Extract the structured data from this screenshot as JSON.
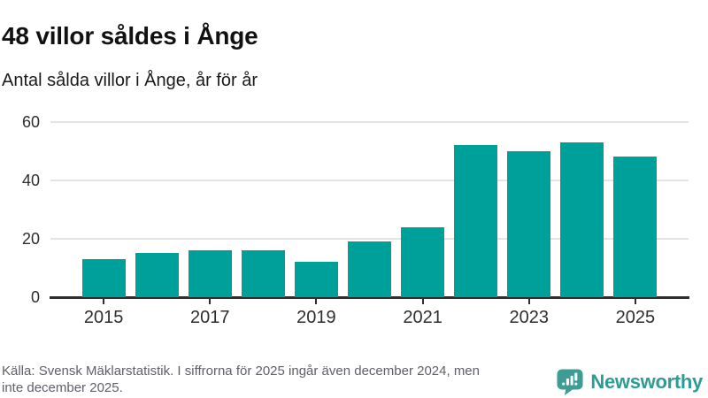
{
  "chart_data": {
    "type": "bar",
    "title": "48 villor såldes i Ånge",
    "subtitle": "Antal sålda villor i Ånge, år för år",
    "categories": [
      "2015",
      "2016",
      "2017",
      "2018",
      "2019",
      "2020",
      "2021",
      "2022",
      "2023",
      "2024",
      "2025"
    ],
    "values": [
      13,
      15,
      16,
      16,
      12,
      19,
      24,
      52,
      50,
      53,
      48
    ],
    "xlabel": "",
    "ylabel": "",
    "ylim": [
      0,
      60
    ],
    "yticks": [
      0,
      20,
      40,
      60
    ],
    "x_tick_labels": [
      "2015",
      "2017",
      "2019",
      "2021",
      "2023",
      "2025"
    ],
    "bar_color": "#00a09a",
    "grid": true,
    "legend": false
  },
  "footer": {
    "source_line1": "Källa: Svensk Mäklarstatistik. I siffrorna för 2025 ingår även december 2024, men",
    "source_line2": "inte december 2025.",
    "brand": {
      "name": "Newsworthy",
      "text_color": "#2d9c94",
      "icon_color": "#3d9c94",
      "icon": "newsworthy-logo-icon"
    }
  }
}
